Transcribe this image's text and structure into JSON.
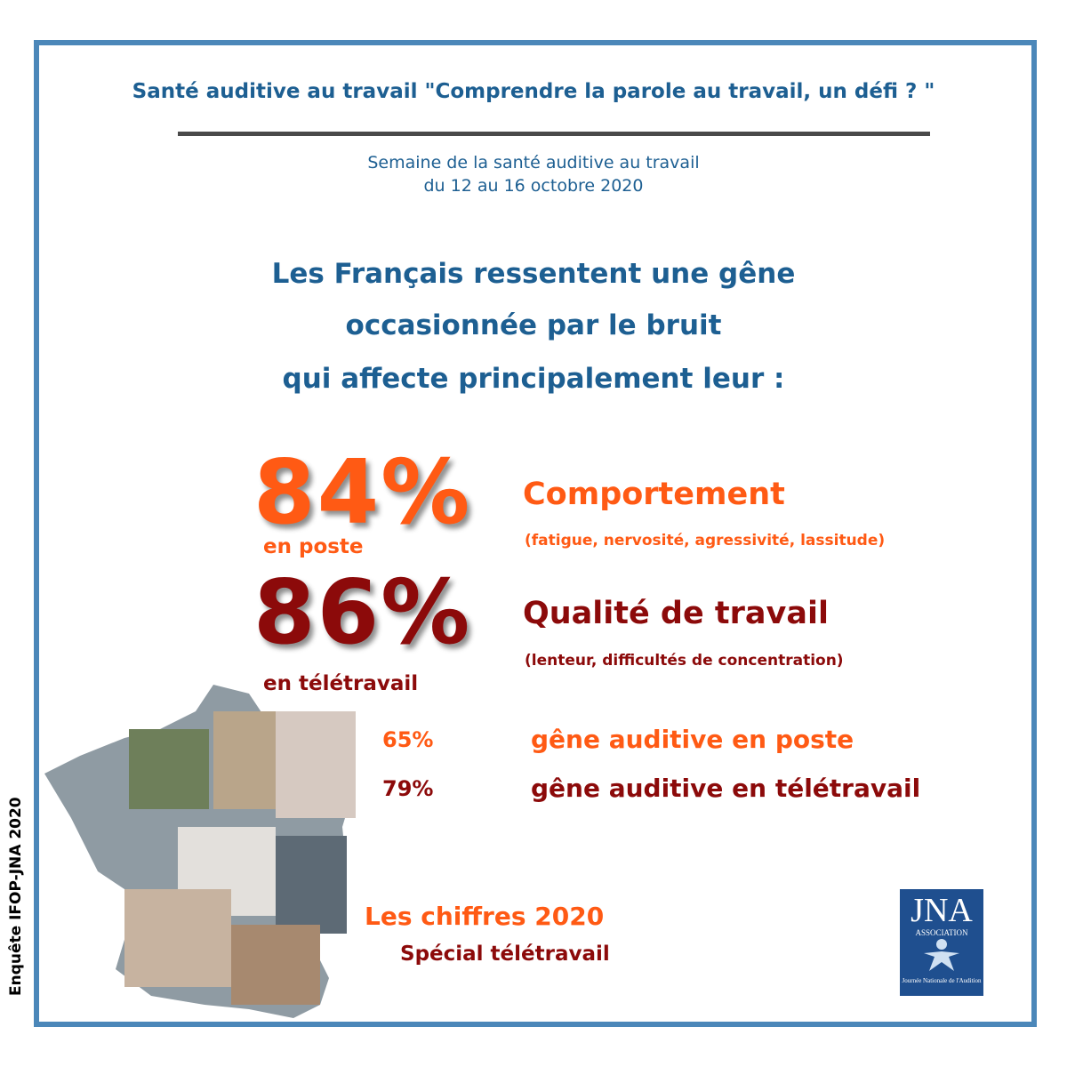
{
  "header": {
    "title": "Santé auditive au travail \"Comprendre la parole au travail, un défi ? \"",
    "subtitle": [
      "Semaine de la santé auditive au travail",
      "du 12 au 16 octobre 2020"
    ]
  },
  "intro": [
    "Les Français ressentent une gêne",
    "occasionnée par le bruit",
    "qui affecte principalement leur :"
  ],
  "stats": [
    {
      "figure": "84%",
      "context": "en poste",
      "label": "Comportement",
      "detail": "(fatigue, nervosité, agressivité, lassitude)"
    },
    {
      "figure": "86%",
      "context": "en télétravail",
      "label": "Qualité de travail",
      "detail": "(lenteur, difficultés de concentration)"
    }
  ],
  "minor_stats": [
    {
      "figure": "65%",
      "label": "gêne auditive en poste"
    },
    {
      "figure": "79%",
      "label": "gêne auditive en télétravail"
    }
  ],
  "footer": {
    "title": "Les chiffres 2020",
    "subtitle": "Spécial télétravail",
    "source": "Enquête IFOP-JNA 2020"
  },
  "logo": {
    "name": "JNA",
    "tag": "ASSOCIATION",
    "caption": "Journée Nationale de l'Audition"
  }
}
